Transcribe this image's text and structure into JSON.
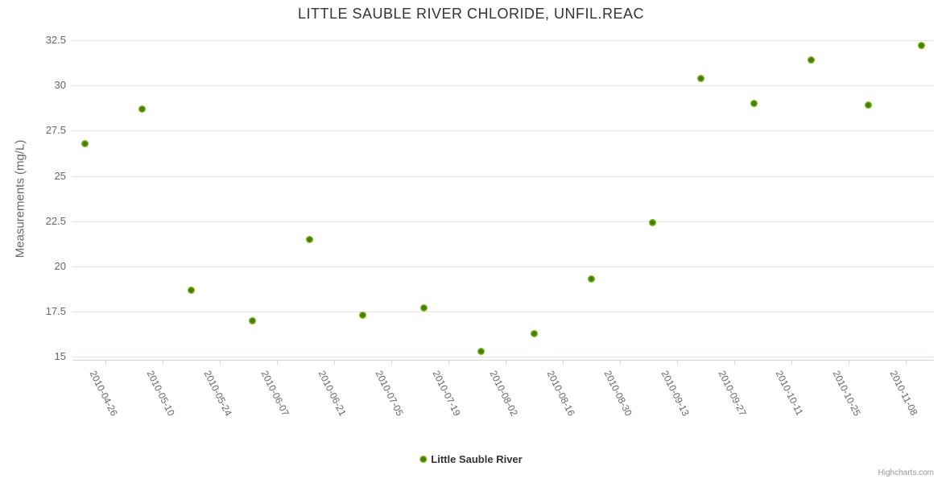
{
  "credit": "Highcharts.com",
  "legend": {
    "label": "Little Sauble River"
  },
  "colors": {
    "marker_outer": "#7db414",
    "marker_core": "#3f7d00",
    "grid": "#e6e6e6",
    "axis_line": "#ccd6eb",
    "title_text": "#333333",
    "label_text": "#666666"
  },
  "chart_data": {
    "type": "scatter",
    "title": "LITTLE SAUBLE RIVER CHLORIDE, UNFIL.REAC",
    "xlabel": "",
    "ylabel": "Measurements (mg/L)",
    "ylim": [
      15,
      32.5
    ],
    "y_tick_step": 2.5,
    "y_tick_labels": [
      "32.5",
      "30",
      "27.5",
      "25",
      "22.5",
      "20",
      "17.5",
      "15"
    ],
    "x_range": [
      "2010-04-18",
      "2010-11-15"
    ],
    "x_tick_dates": [
      "2010-04-26",
      "2010-05-10",
      "2010-05-24",
      "2010-06-07",
      "2010-06-21",
      "2010-07-05",
      "2010-07-19",
      "2010-08-02",
      "2010-08-16",
      "2010-08-30",
      "2010-09-13",
      "2010-09-27",
      "2010-10-11",
      "2010-10-25",
      "2010-11-08"
    ],
    "grid": "horizontal",
    "legend_position": "bottom-center",
    "series": [
      {
        "name": "Little Sauble River",
        "color": "#7db414",
        "x": [
          "2010-04-21",
          "2010-05-05",
          "2010-05-17",
          "2010-06-01",
          "2010-06-15",
          "2010-06-28",
          "2010-07-13",
          "2010-07-27",
          "2010-08-09",
          "2010-08-23",
          "2010-09-07",
          "2010-09-19",
          "2010-10-02",
          "2010-10-16",
          "2010-10-30",
          "2010-11-12"
        ],
        "y": [
          26.8,
          28.7,
          18.7,
          17.0,
          21.5,
          17.3,
          17.7,
          15.3,
          16.3,
          19.3,
          22.4,
          30.4,
          29.0,
          31.4,
          28.9,
          32.2
        ]
      }
    ]
  }
}
